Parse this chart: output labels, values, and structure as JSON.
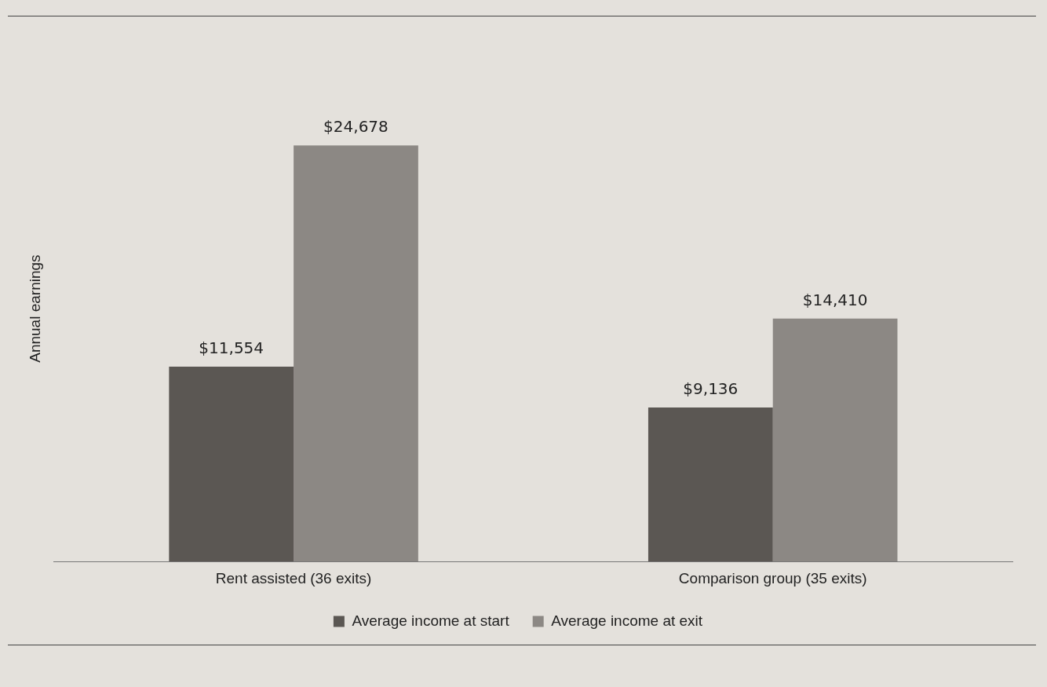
{
  "chart_data": {
    "type": "bar",
    "ylabel": "Annual earnings",
    "categories": [
      "Rent assisted (36 exits)",
      "Comparison group (35 exits)"
    ],
    "series": [
      {
        "name": "Average income at start",
        "color": "#5b5753",
        "values": [
          11554,
          9136
        ],
        "value_labels": [
          "$11,554",
          "$9,136"
        ]
      },
      {
        "name": "Average income at exit",
        "color": "#8c8884",
        "values": [
          24678,
          14410
        ],
        "value_labels": [
          "$24,678",
          "$14,410"
        ]
      }
    ],
    "legend": "bottom",
    "grid": false
  }
}
